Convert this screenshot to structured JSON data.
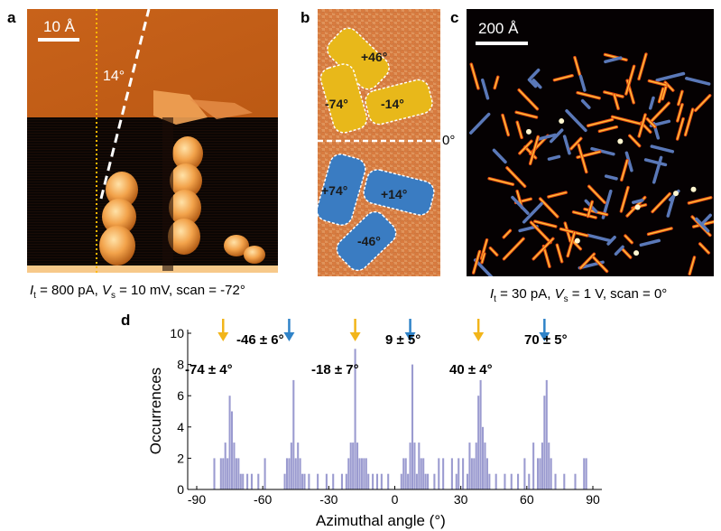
{
  "panels": {
    "a": {
      "label": "a",
      "scale_text": "10 Å",
      "angle_text": "14°",
      "caption": {
        "i_sym": "I",
        "i_sub": "t",
        "i_rest": " = 800 pA, ",
        "v_sym": "V",
        "v_sub": "s",
        "v_rest": " = 10 mV, scan = -72°"
      }
    },
    "b": {
      "label": "b",
      "zero_text": "0°",
      "yellow_labels": [
        "+46°",
        "-74°",
        "-14°"
      ],
      "blue_labels": [
        "+74°",
        "+14°",
        "-46°"
      ],
      "colors": {
        "yellow": "#e8b81a",
        "blue": "#3a7cc2",
        "lattice": "#d9844a"
      }
    },
    "c": {
      "label": "c",
      "scale_text": "200 Å",
      "caption": {
        "i_sym": "I",
        "i_sub": "t",
        "i_rest": " = 30 pA, ",
        "v_sym": "V",
        "v_sub": "s",
        "v_rest": " = 1 V, scan = 0°"
      }
    },
    "d": {
      "label": "d"
    }
  },
  "chart_data": {
    "type": "bar",
    "xlabel": "Azimuthal angle (°)",
    "ylabel": "Occurrences",
    "xlim": [
      -90,
      90
    ],
    "ylim": [
      0,
      10
    ],
    "xticks": [
      -90,
      -60,
      -30,
      0,
      30,
      60,
      90
    ],
    "yticks": [
      0,
      2,
      4,
      6,
      8,
      10
    ],
    "bar_color": "#9b9bd0",
    "bin_width": 1,
    "x": [
      -82,
      -79,
      -78,
      -77,
      -76,
      -75,
      -74,
      -73,
      -72,
      -71,
      -70,
      -69,
      -67,
      -65,
      -62,
      -59,
      -50,
      -49,
      -48,
      -47,
      -46,
      -45,
      -44,
      -43,
      -42,
      -41,
      -39,
      -35,
      -31,
      -28,
      -24,
      -22,
      -21,
      -20,
      -19,
      -18,
      -17,
      -16,
      -15,
      -14,
      -13,
      -12,
      -10,
      -8,
      -6,
      -3,
      3,
      4,
      5,
      6,
      7,
      8,
      9,
      10,
      11,
      12,
      13,
      14,
      15,
      18,
      20,
      22,
      26,
      28,
      29,
      31,
      33,
      34,
      35,
      36,
      37,
      38,
      39,
      40,
      41,
      42,
      43,
      46,
      50,
      53,
      56,
      59,
      61,
      63,
      65,
      66,
      67,
      68,
      69,
      70,
      71,
      73,
      77,
      82,
      86,
      87
    ],
    "values": [
      2,
      2,
      2,
      3,
      2,
      6,
      5,
      3,
      2,
      2,
      1,
      1,
      1,
      1,
      1,
      2,
      1,
      2,
      2,
      3,
      7,
      2,
      3,
      2,
      1,
      1,
      1,
      1,
      1,
      1,
      1,
      1,
      2,
      3,
      3,
      9,
      3,
      2,
      2,
      2,
      2,
      1,
      1,
      1,
      1,
      1,
      1,
      2,
      2,
      1,
      3,
      8,
      3,
      1,
      3,
      2,
      2,
      1,
      1,
      1,
      2,
      2,
      2,
      1,
      2,
      2,
      1,
      3,
      2,
      2,
      3,
      6,
      7,
      4,
      3,
      2,
      1,
      1,
      1,
      1,
      1,
      2,
      1,
      3,
      2,
      2,
      3,
      6,
      7,
      3,
      2,
      1,
      1,
      1,
      2,
      2
    ],
    "annotations": [
      {
        "text_val": "-74",
        "text_err": "4",
        "arrow": "yellow",
        "arrow_x": -78
      },
      {
        "text_val": "-46",
        "text_err": "6",
        "arrow": "blue",
        "arrow_x": -48
      },
      {
        "text_val": "-18",
        "text_err": "7",
        "arrow": "yellow",
        "arrow_x": -18
      },
      {
        "text_val": "9",
        "text_err": "5",
        "arrow": "blue",
        "arrow_x": 7
      },
      {
        "text_val": "40",
        "text_err": "4",
        "arrow": "yellow",
        "arrow_x": 38
      },
      {
        "text_val": "70",
        "text_err": "5",
        "arrow": "blue",
        "arrow_x": 68
      }
    ],
    "pm": "±",
    "deg": "°",
    "arrow_colors": {
      "yellow": "#f2b51a",
      "blue": "#2f83c8"
    }
  }
}
